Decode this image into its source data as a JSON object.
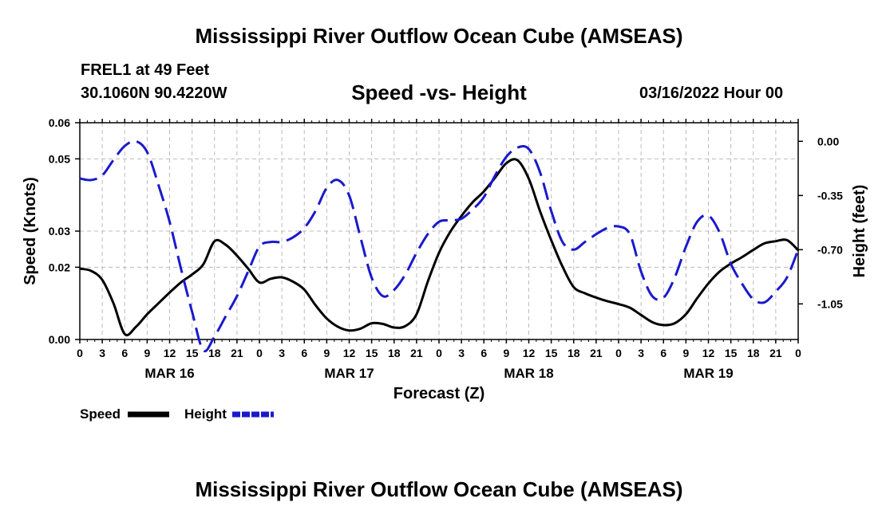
{
  "page": {
    "title": "Mississippi River Outflow Ocean Cube (AMSEAS)",
    "station": "FREL1 at 49 Feet",
    "coords": "30.1060N  90.4220W",
    "subtitle": "Speed -vs- Height",
    "datetime": "03/16/2022 Hour 00",
    "title_bottom": "Mississippi River Outflow Ocean Cube (AMSEAS)"
  },
  "colors": {
    "speed": "#000000",
    "height": "#1a1acc",
    "grid": "#bbbbbb"
  },
  "chart_data": {
    "type": "line",
    "xlabel": "Forecast (Z)",
    "ylabel_left": "Speed (Knots)",
    "ylabel_right": "Height (feet)",
    "x_hours_range": [
      0,
      96
    ],
    "ylim_left": [
      0,
      0.06
    ],
    "ylim_right": [
      -1.28,
      0.12
    ],
    "left_ticks": [
      {
        "v": 0.0,
        "label": "0.00"
      },
      {
        "v": 0.02,
        "label": "0.02"
      },
      {
        "v": 0.03,
        "label": "0.03"
      },
      {
        "v": 0.05,
        "label": "0.05"
      },
      {
        "v": 0.06,
        "label": "0.06"
      }
    ],
    "right_ticks": [
      {
        "v": 0.0,
        "label": "0.00"
      },
      {
        "v": -0.35,
        "label": "-0.35"
      },
      {
        "v": -0.7,
        "label": "-0.70"
      },
      {
        "v": -1.05,
        "label": "-1.05"
      }
    ],
    "x_tick_labels": [
      "0",
      "3",
      "6",
      "9",
      "12",
      "15",
      "18",
      "21",
      "0",
      "3",
      "6",
      "9",
      "12",
      "15",
      "18",
      "21",
      "0",
      "3",
      "6",
      "9",
      "12",
      "15",
      "18",
      "21",
      "0",
      "3",
      "6",
      "9",
      "12",
      "15",
      "18",
      "21",
      "0"
    ],
    "day_labels": [
      "MAR 16",
      "MAR 17",
      "MAR 18",
      "MAR 19"
    ],
    "series": [
      {
        "name": "Speed",
        "axis": "left",
        "x": [
          0,
          1.5,
          3,
          4.5,
          6,
          7.5,
          9,
          10.5,
          12,
          13.5,
          15,
          16.5,
          18,
          19.5,
          21,
          22.5,
          24,
          25.5,
          27,
          28.5,
          30,
          31.5,
          33,
          34.5,
          36,
          37.5,
          39,
          40.5,
          42,
          43.5,
          45,
          46.5,
          48,
          49.5,
          51,
          52.5,
          54,
          55.5,
          57,
          58.5,
          60,
          61.5,
          63,
          64.5,
          66,
          67.5,
          69,
          70.5,
          72,
          73.5,
          75,
          76.5,
          78,
          79.5,
          81,
          82.5,
          84,
          85.5,
          87,
          88.5,
          90,
          91.5,
          93,
          94.5,
          96
        ],
        "values": [
          0.0196,
          0.019,
          0.0165,
          0.01,
          0.0015,
          0.0035,
          0.007,
          0.01,
          0.013,
          0.0158,
          0.018,
          0.0208,
          0.0272,
          0.0262,
          0.0232,
          0.0196,
          0.0158,
          0.0168,
          0.0172,
          0.016,
          0.0138,
          0.0095,
          0.0058,
          0.0035,
          0.0025,
          0.003,
          0.0045,
          0.0043,
          0.0033,
          0.0037,
          0.007,
          0.016,
          0.024,
          0.0298,
          0.0342,
          0.038,
          0.041,
          0.0448,
          0.0488,
          0.0496,
          0.0445,
          0.0355,
          0.0275,
          0.0202,
          0.0145,
          0.0128,
          0.0116,
          0.0106,
          0.0098,
          0.0088,
          0.0068,
          0.0048,
          0.004,
          0.0045,
          0.007,
          0.0114,
          0.0155,
          0.0188,
          0.021,
          0.0228,
          0.0248,
          0.0266,
          0.0272,
          0.0275,
          0.0247
        ]
      },
      {
        "name": "Height",
        "axis": "right",
        "x": [
          0,
          1.5,
          3,
          4.5,
          6,
          7.5,
          9,
          10.5,
          12,
          13.5,
          15,
          16.5,
          18,
          19.5,
          21,
          22.5,
          24,
          25.5,
          27,
          28.5,
          30,
          31.5,
          33,
          34.5,
          36,
          37.5,
          39,
          40.5,
          42,
          43.5,
          45,
          46.5,
          48,
          49.5,
          51,
          52.5,
          54,
          55.5,
          57,
          58.5,
          60,
          61.5,
          63,
          64.5,
          66,
          67.5,
          69,
          70.5,
          72,
          73.5,
          75,
          76.5,
          78,
          79.5,
          81,
          82.5,
          84,
          85.5,
          87,
          88.5,
          90,
          91.5,
          93,
          94.5,
          96
        ],
        "values": [
          -0.24,
          -0.25,
          -0.22,
          -0.12,
          -0.03,
          0.0,
          -0.07,
          -0.28,
          -0.52,
          -0.82,
          -1.1,
          -1.35,
          -1.26,
          -1.13,
          -1.0,
          -0.84,
          -0.68,
          -0.65,
          -0.65,
          -0.62,
          -0.56,
          -0.45,
          -0.3,
          -0.25,
          -0.35,
          -0.62,
          -0.88,
          -1.0,
          -0.96,
          -0.86,
          -0.72,
          -0.6,
          -0.52,
          -0.51,
          -0.5,
          -0.44,
          -0.36,
          -0.22,
          -0.1,
          -0.04,
          -0.05,
          -0.2,
          -0.45,
          -0.65,
          -0.7,
          -0.65,
          -0.6,
          -0.56,
          -0.55,
          -0.6,
          -0.84,
          -1.0,
          -1.01,
          -0.88,
          -0.68,
          -0.52,
          -0.48,
          -0.59,
          -0.79,
          -0.92,
          -1.02,
          -1.04,
          -0.97,
          -0.88,
          -0.7
        ]
      }
    ],
    "legend": [
      {
        "label": "Speed",
        "style": "solid"
      },
      {
        "label": "Height",
        "style": "dashed"
      }
    ]
  }
}
